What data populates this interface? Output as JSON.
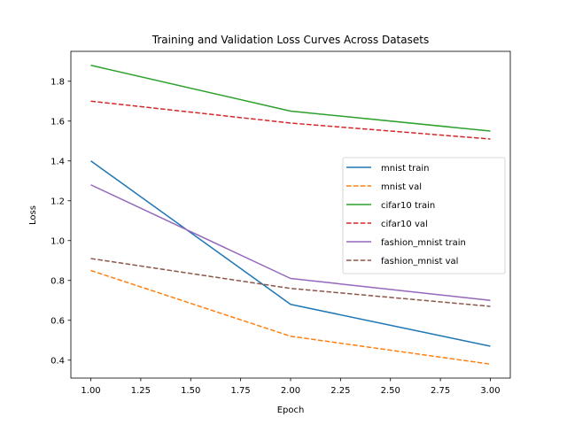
{
  "chart_data": {
    "type": "line",
    "title": "Training and Validation Loss Curves Across Datasets",
    "xlabel": "Epoch",
    "ylabel": "Loss",
    "xlim": [
      0.9,
      3.1
    ],
    "ylim": [
      0.31,
      1.95
    ],
    "xticks": [
      1.0,
      1.25,
      1.5,
      1.75,
      2.0,
      2.25,
      2.5,
      2.75,
      3.0
    ],
    "xtick_labels": [
      "1.00",
      "1.25",
      "1.50",
      "1.75",
      "2.00",
      "2.25",
      "2.50",
      "2.75",
      "3.00"
    ],
    "yticks": [
      0.4,
      0.6,
      0.8,
      1.0,
      1.2,
      1.4,
      1.6,
      1.8
    ],
    "ytick_labels": [
      "0.4",
      "0.6",
      "0.8",
      "1.0",
      "1.2",
      "1.4",
      "1.6",
      "1.8"
    ],
    "grid": false,
    "legend_position": "center-right",
    "x": [
      1,
      2,
      3
    ],
    "series": [
      {
        "name": "mnist train",
        "values": [
          1.4,
          0.68,
          0.47
        ],
        "color": "#1f77b4",
        "style": "solid"
      },
      {
        "name": "mnist val",
        "values": [
          0.85,
          0.52,
          0.38
        ],
        "color": "#ff7f0e",
        "style": "dashed"
      },
      {
        "name": "cifar10 train",
        "values": [
          1.88,
          1.65,
          1.55
        ],
        "color": "#2ca02c",
        "style": "solid"
      },
      {
        "name": "cifar10 val",
        "values": [
          1.7,
          1.59,
          1.51
        ],
        "color": "#d62728",
        "style": "dashed"
      },
      {
        "name": "fashion_mnist train",
        "values": [
          1.28,
          0.81,
          0.7
        ],
        "color": "#9467bd",
        "style": "solid"
      },
      {
        "name": "fashion_mnist val",
        "values": [
          0.91,
          0.76,
          0.67
        ],
        "color": "#8c564b",
        "style": "dashed"
      }
    ]
  }
}
